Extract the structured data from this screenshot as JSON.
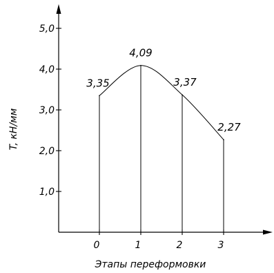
{
  "chart_data": {
    "type": "area",
    "title": "",
    "xlabel": "Этапы переформовки",
    "ylabel": "T, кН/мм",
    "x": [
      0,
      1,
      2,
      3
    ],
    "values": [
      3.35,
      4.09,
      3.37,
      2.27
    ],
    "data_labels": [
      "3,35",
      "4,09",
      "3,37",
      "2,27"
    ],
    "x_ticks": [
      0,
      1,
      2,
      3
    ],
    "x_tick_labels": [
      "0",
      "1",
      "2",
      "3"
    ],
    "y_ticks": [
      1.0,
      2.0,
      3.0,
      4.0,
      5.0
    ],
    "y_tick_labels": [
      "1,0",
      "2,0",
      "3,0",
      "4,0",
      "5,0"
    ],
    "xlim": [
      -1,
      4.3
    ],
    "ylim": [
      0,
      5.5
    ],
    "grid": false,
    "vertical_drop_lines": true,
    "curve": "smooth",
    "legend": "none",
    "color": "#000000"
  }
}
